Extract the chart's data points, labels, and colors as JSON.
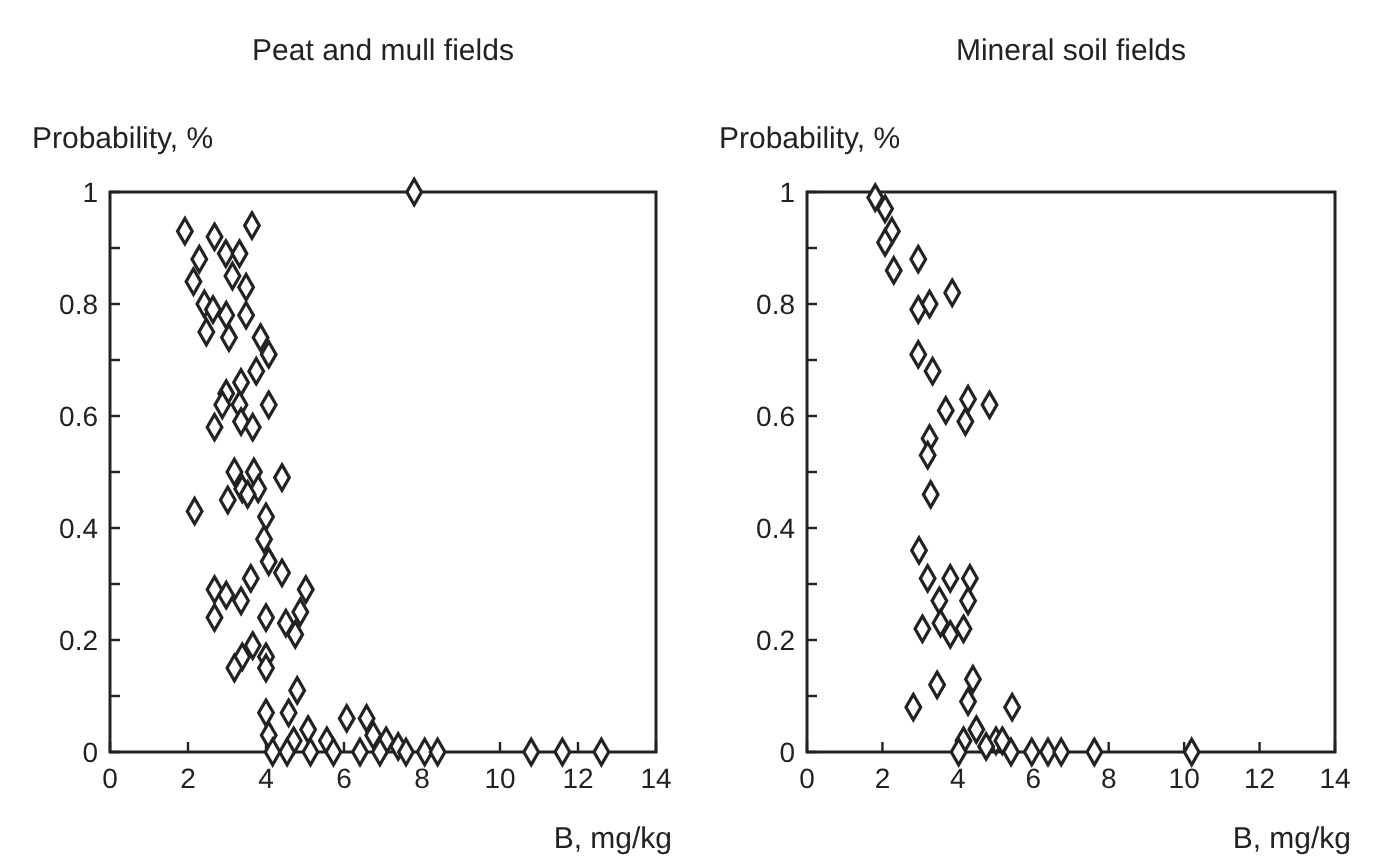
{
  "chart_data": [
    {
      "type": "scatter",
      "title": "Peat and mull fields",
      "xlabel": "B, mg/kg",
      "ylabel": "Probability, %",
      "marker": "diamond",
      "grid": false,
      "xlim": [
        0,
        14
      ],
      "ylim": [
        0,
        1
      ],
      "xticks": [
        0,
        2,
        4,
        6,
        8,
        10,
        12,
        14
      ],
      "yticks": [
        0,
        {
          "value": 0.1,
          "label": null
        },
        0.2,
        {
          "value": 0.3,
          "label": null
        },
        0.4,
        {
          "value": 0.5,
          "label": null
        },
        0.6,
        {
          "value": 0.7,
          "label": null
        },
        0.8,
        {
          "value": 0.9,
          "label": null
        },
        1
      ],
      "series": [
        {
          "color": "#222222",
          "x": [
            7.8,
            1.92,
            2.68,
            3.64,
            2.97,
            3.32,
            2.29,
            3.14,
            2.14,
            3.49,
            2.42,
            2.64,
            2.98,
            3.49,
            2.47,
            3.05,
            3.86,
            4.07,
            3.75,
            3.36,
            2.98,
            2.88,
            4.07,
            3.32,
            2.68,
            3.36,
            3.66,
            3.19,
            3.69,
            4.41,
            3.39,
            3.02,
            3.8,
            3.53,
            2.17,
            4.0,
            3.95,
            2.68,
            2.98,
            3.61,
            4.07,
            4.41,
            5.02,
            3.36,
            2.68,
            4.0,
            4.51,
            4.88,
            4.75,
            3.66,
            3.39,
            3.19,
            4.0,
            4.0,
            4.8,
            4.0,
            4.58,
            4.07,
            5.08,
            6.07,
            6.58,
            4.71,
            5.56,
            6.75,
            7.08,
            7.39,
            4.17,
            4.54,
            5.14,
            5.73,
            6.41,
            6.92,
            7.59,
            8.07,
            8.4,
            10.8,
            11.6,
            12.6
          ],
          "values": [
            1.0,
            0.93,
            0.92,
            0.94,
            0.89,
            0.89,
            0.88,
            0.85,
            0.84,
            0.83,
            0.8,
            0.79,
            0.78,
            0.78,
            0.75,
            0.74,
            0.74,
            0.71,
            0.68,
            0.66,
            0.64,
            0.62,
            0.62,
            0.62,
            0.58,
            0.59,
            0.58,
            0.5,
            0.5,
            0.49,
            0.47,
            0.45,
            0.47,
            0.46,
            0.43,
            0.42,
            0.38,
            0.29,
            0.28,
            0.31,
            0.34,
            0.32,
            0.29,
            0.27,
            0.24,
            0.24,
            0.23,
            0.25,
            0.21,
            0.19,
            0.17,
            0.15,
            0.17,
            0.15,
            0.11,
            0.07,
            0.07,
            0.03,
            0.04,
            0.06,
            0.06,
            0.02,
            0.02,
            0.03,
            0.02,
            0.01,
            0,
            0,
            0,
            0,
            0,
            0,
            0,
            0,
            0,
            0,
            0,
            0
          ]
        }
      ]
    },
    {
      "type": "scatter",
      "title": "Mineral soil fields",
      "xlabel": "B, mg/kg",
      "ylabel": "Probability, %",
      "marker": "diamond",
      "grid": false,
      "xlim": [
        0,
        14
      ],
      "ylim": [
        0,
        1
      ],
      "xticks": [
        0,
        2,
        4,
        6,
        8,
        10,
        12,
        14
      ],
      "yticks": [
        0,
        {
          "value": 0.1,
          "label": null
        },
        0.2,
        {
          "value": 0.3,
          "label": null
        },
        0.4,
        {
          "value": 0.5,
          "label": null
        },
        0.6,
        {
          "value": 0.7,
          "label": null
        },
        0.8,
        {
          "value": 0.9,
          "label": null
        },
        1
      ],
      "series": [
        {
          "color": "#222222",
          "x": [
            1.81,
            2.07,
            2.25,
            2.07,
            2.3,
            2.95,
            2.95,
            3.25,
            3.85,
            2.95,
            3.33,
            3.68,
            4.27,
            4.84,
            4.2,
            3.25,
            3.2,
            3.28,
            2.97,
            3.2,
            3.8,
            4.32,
            3.51,
            4.27,
            3.54,
            3.06,
            3.8,
            4.15,
            2.82,
            3.45,
            4.4,
            4.27,
            4.15,
            4.49,
            5.01,
            5.44,
            4.02,
            4.75,
            5.18,
            5.41,
            5.96,
            6.39,
            6.74,
            7.62,
            10.2
          ],
          "values": [
            0.99,
            0.97,
            0.93,
            0.91,
            0.86,
            0.88,
            0.79,
            0.8,
            0.82,
            0.71,
            0.68,
            0.61,
            0.63,
            0.62,
            0.59,
            0.56,
            0.53,
            0.46,
            0.36,
            0.31,
            0.31,
            0.31,
            0.27,
            0.27,
            0.23,
            0.22,
            0.21,
            0.22,
            0.08,
            0.12,
            0.13,
            0.09,
            0.02,
            0.04,
            0.02,
            0.08,
            0,
            0.01,
            0.02,
            0,
            0,
            0,
            0,
            0,
            0
          ]
        }
      ]
    }
  ]
}
